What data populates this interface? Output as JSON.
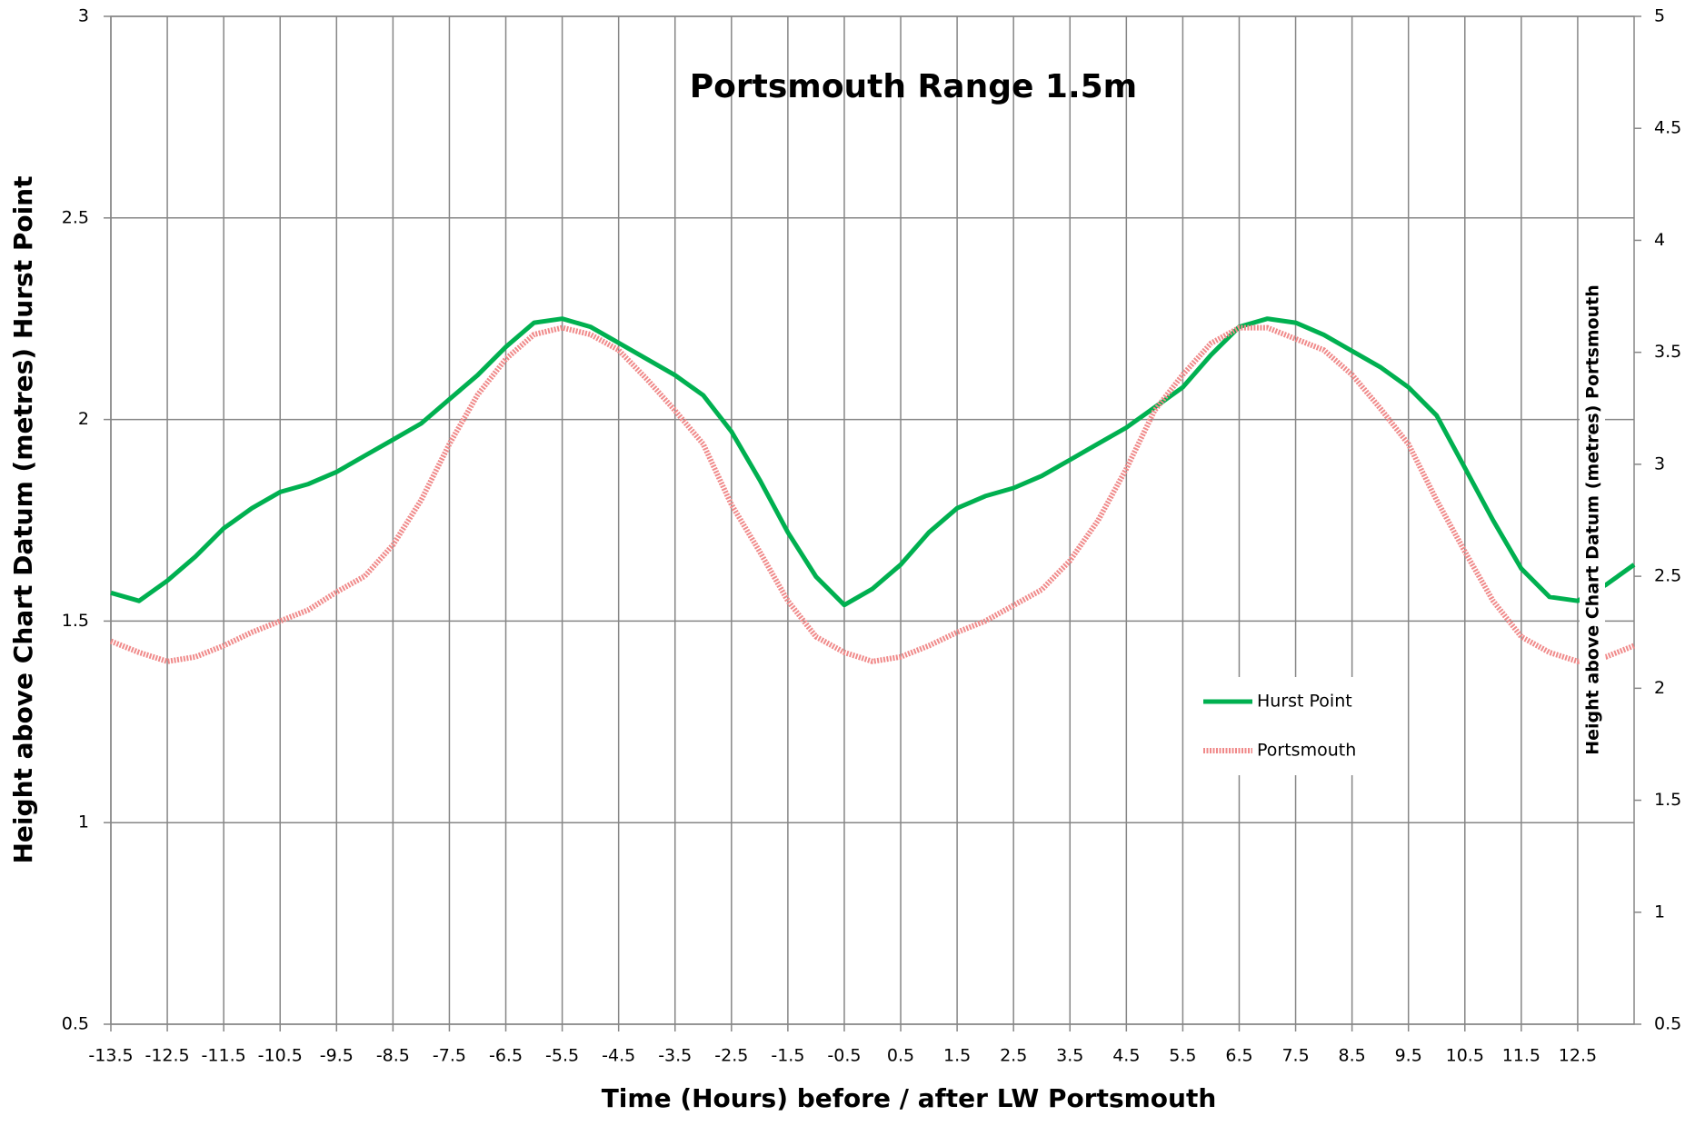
{
  "chart_data": {
    "type": "line",
    "title": "Portsmouth Range 1.5m",
    "xlabel": "Time (Hours) before / after LW Portsmouth",
    "ylabel": "Height above Chart Datum (metres) Hurst Point",
    "y2label": "Height above Chart Datum (metres) Portsmouth",
    "x": [
      -13.5,
      -13,
      -12.5,
      -12,
      -11.5,
      -11,
      -10.5,
      -10,
      -9.5,
      -9,
      -8.5,
      -8,
      -7.5,
      -7,
      -6.5,
      -6,
      -5.5,
      -5,
      -4.5,
      -4,
      -3.5,
      -3,
      -2.5,
      -2,
      -1.5,
      -1,
      -0.5,
      0,
      0.5,
      1,
      1.5,
      2,
      2.5,
      3,
      3.5,
      4,
      4.5,
      5,
      5.5,
      6,
      6.5,
      7,
      7.5,
      8,
      8.5,
      9,
      9.5,
      10,
      10.5,
      11,
      11.5,
      12,
      12.5,
      13,
      13.5
    ],
    "series": [
      {
        "name": "Hurst Point",
        "color": "#00b050",
        "values": [
          1.57,
          1.55,
          1.6,
          1.66,
          1.73,
          1.78,
          1.82,
          1.84,
          1.87,
          1.91,
          1.95,
          1.99,
          2.05,
          2.11,
          2.18,
          2.24,
          2.25,
          2.23,
          2.19,
          2.15,
          2.11,
          2.06,
          1.97,
          1.85,
          1.72,
          1.61,
          1.54,
          1.58,
          1.64,
          1.72,
          1.78,
          1.81,
          1.83,
          1.86,
          1.9,
          1.94,
          1.98,
          2.03,
          2.08,
          2.16,
          2.23,
          2.25,
          2.24,
          2.21,
          2.17,
          2.13,
          2.08,
          2.01,
          1.88,
          1.75,
          1.63,
          1.56,
          1.55,
          1.59,
          1.64
        ]
      },
      {
        "name": "Portsmouth",
        "color": "#f08a8a",
        "axis": "y2",
        "values": [
          2.21,
          2.16,
          2.12,
          2.14,
          2.19,
          2.25,
          2.3,
          2.35,
          2.43,
          2.5,
          2.64,
          2.84,
          3.09,
          3.31,
          3.47,
          3.58,
          3.61,
          3.58,
          3.51,
          3.38,
          3.24,
          3.09,
          2.82,
          2.61,
          2.39,
          2.23,
          2.16,
          2.12,
          2.14,
          2.19,
          2.25,
          2.3,
          2.37,
          2.44,
          2.57,
          2.75,
          2.98,
          3.24,
          3.4,
          3.54,
          3.61,
          3.61,
          3.56,
          3.51,
          3.4,
          3.25,
          3.09,
          2.84,
          2.61,
          2.39,
          2.23,
          2.16,
          2.12,
          2.14,
          2.19
        ]
      }
    ],
    "xlim": [
      -13.5,
      13.5
    ],
    "xticks": [
      -13.5,
      -12.5,
      -11.5,
      -10.5,
      -9.5,
      -8.5,
      -7.5,
      -6.5,
      -5.5,
      -4.5,
      -3.5,
      -2.5,
      -1.5,
      -0.5,
      0.5,
      1.5,
      2.5,
      3.5,
      4.5,
      5.5,
      6.5,
      7.5,
      8.5,
      9.5,
      10.5,
      11.5,
      12.5
    ],
    "ylim": [
      0.5,
      3
    ],
    "yticks": [
      0.5,
      1,
      1.5,
      2,
      2.5,
      3
    ],
    "y2lim": [
      0.5,
      5
    ],
    "y2ticks": [
      0.5,
      1,
      1.5,
      2,
      2.5,
      3,
      3.5,
      4,
      4.5,
      5
    ],
    "grid": true,
    "legend": "lower right"
  }
}
